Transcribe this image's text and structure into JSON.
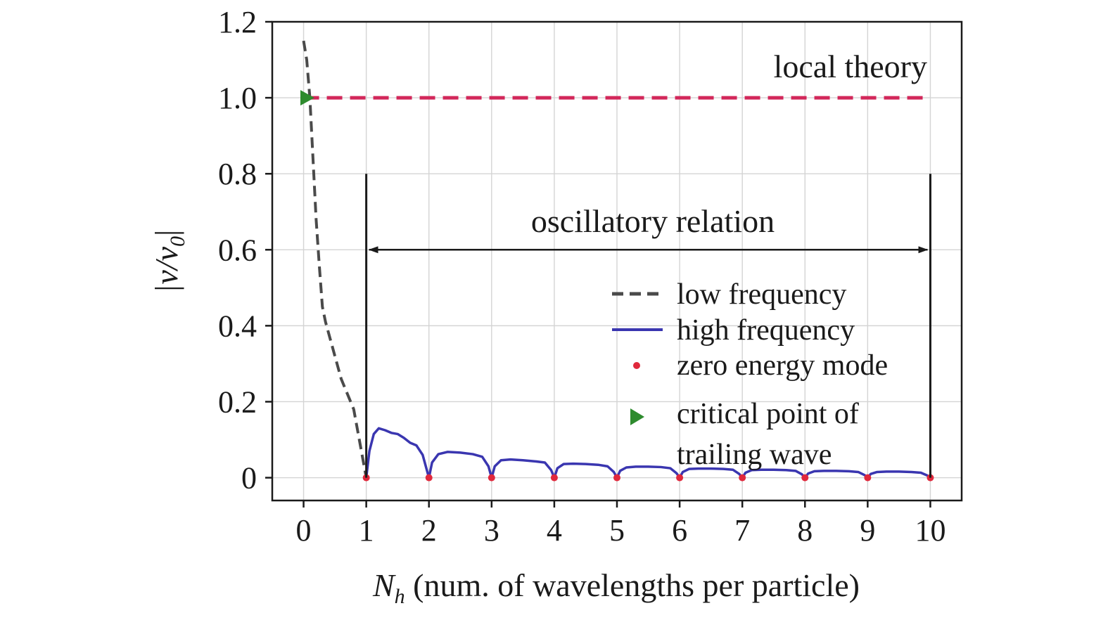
{
  "chart_data": {
    "type": "line",
    "xlabel": "N",
    "xlabel_sub": "h",
    "xlabel_rest": " (num. of wavelengths per particle)",
    "ylabel": "|v/v",
    "ylabel_sub": "0",
    "ylabel_end": "|",
    "xlim": [
      -0.5,
      10.5
    ],
    "ylim": [
      -0.06,
      1.2
    ],
    "x_ticks": [
      0,
      1,
      2,
      3,
      4,
      5,
      6,
      7,
      8,
      9,
      10
    ],
    "x_tick_labels": [
      "0",
      "1",
      "2",
      "3",
      "4",
      "5",
      "6",
      "7",
      "8",
      "9",
      "10"
    ],
    "y_ticks": [
      0,
      0.2,
      0.4,
      0.6,
      0.8,
      1.0,
      1.2
    ],
    "y_tick_labels": [
      "0",
      "0.2",
      "0.4",
      "0.6",
      "0.8",
      "1.0",
      "1.2"
    ],
    "grid": true,
    "annotations": {
      "local_theory": "local theory",
      "oscillatory_relation": "oscillatory relation",
      "oscillatory_range": [
        1,
        10
      ],
      "oscillatory_arrow_y": 0.6,
      "oscillatory_bar_top": 0.8
    },
    "legend": {
      "placement": "center-right",
      "entries": [
        "low frequency",
        "high frequency",
        "zero energy mode",
        "critical point of",
        "trailing wave"
      ]
    },
    "colors": {
      "low_frequency": "#4a4a4a",
      "high_frequency": "#3a36b0",
      "local_theory": "#d2275a",
      "zero_energy": "#e0283c",
      "critical_point": "#2e8b2e",
      "axis": "#1a1a1a"
    },
    "series": [
      {
        "name": "local theory",
        "style": "dashed",
        "x": [
          0,
          10
        ],
        "y": [
          1.0,
          1.0
        ]
      },
      {
        "name": "low frequency",
        "style": "dashed",
        "x": [
          0.0,
          0.05,
          0.1,
          0.15,
          0.2,
          0.25,
          0.3,
          0.35,
          0.4,
          0.5,
          0.6,
          0.7,
          0.8,
          0.9,
          1.0
        ],
        "y": [
          1.15,
          1.1,
          1.0,
          0.84,
          0.68,
          0.56,
          0.45,
          0.41,
          0.38,
          0.32,
          0.26,
          0.22,
          0.18,
          0.09,
          0.0
        ]
      },
      {
        "name": "high frequency",
        "style": "solid",
        "x": [
          1.0,
          1.05,
          1.12,
          1.2,
          1.3,
          1.4,
          1.5,
          1.6,
          1.7,
          1.8,
          1.9,
          1.95,
          2.0,
          2.05,
          2.15,
          2.3,
          2.5,
          2.7,
          2.85,
          2.95,
          3.0,
          3.05,
          3.15,
          3.3,
          3.5,
          3.7,
          3.85,
          3.95,
          4.0,
          4.05,
          4.15,
          4.3,
          4.5,
          4.7,
          4.85,
          4.95,
          5.0,
          5.05,
          5.15,
          5.3,
          5.5,
          5.7,
          5.85,
          5.95,
          6.0,
          6.05,
          6.15,
          6.3,
          6.5,
          6.7,
          6.85,
          6.95,
          7.0,
          7.05,
          7.15,
          7.3,
          7.5,
          7.7,
          7.85,
          7.95,
          8.0,
          8.05,
          8.15,
          8.3,
          8.5,
          8.7,
          8.85,
          8.95,
          9.0,
          9.05,
          9.15,
          9.3,
          9.5,
          9.7,
          9.85,
          9.95,
          10.0
        ],
        "y": [
          0.0,
          0.07,
          0.115,
          0.13,
          0.125,
          0.118,
          0.115,
          0.105,
          0.092,
          0.085,
          0.06,
          0.03,
          0.0,
          0.04,
          0.062,
          0.068,
          0.066,
          0.062,
          0.055,
          0.03,
          0.0,
          0.03,
          0.046,
          0.048,
          0.046,
          0.043,
          0.04,
          0.02,
          0.0,
          0.025,
          0.036,
          0.037,
          0.036,
          0.034,
          0.03,
          0.015,
          0.0,
          0.018,
          0.027,
          0.029,
          0.029,
          0.028,
          0.025,
          0.012,
          0.0,
          0.015,
          0.023,
          0.024,
          0.024,
          0.023,
          0.021,
          0.01,
          0.0,
          0.013,
          0.02,
          0.021,
          0.021,
          0.02,
          0.018,
          0.009,
          0.0,
          0.011,
          0.017,
          0.018,
          0.018,
          0.017,
          0.015,
          0.007,
          0.0,
          0.01,
          0.015,
          0.016,
          0.016,
          0.015,
          0.013,
          0.006,
          0.0
        ]
      },
      {
        "name": "zero energy mode",
        "style": "markers",
        "x": [
          1,
          2,
          3,
          4,
          5,
          6,
          7,
          8,
          9,
          10
        ],
        "y": [
          0,
          0,
          0,
          0,
          0,
          0,
          0,
          0,
          0,
          0
        ]
      },
      {
        "name": "critical point of trailing wave",
        "style": "triangle-marker",
        "x": [
          0.05
        ],
        "y": [
          1.0
        ]
      }
    ]
  }
}
